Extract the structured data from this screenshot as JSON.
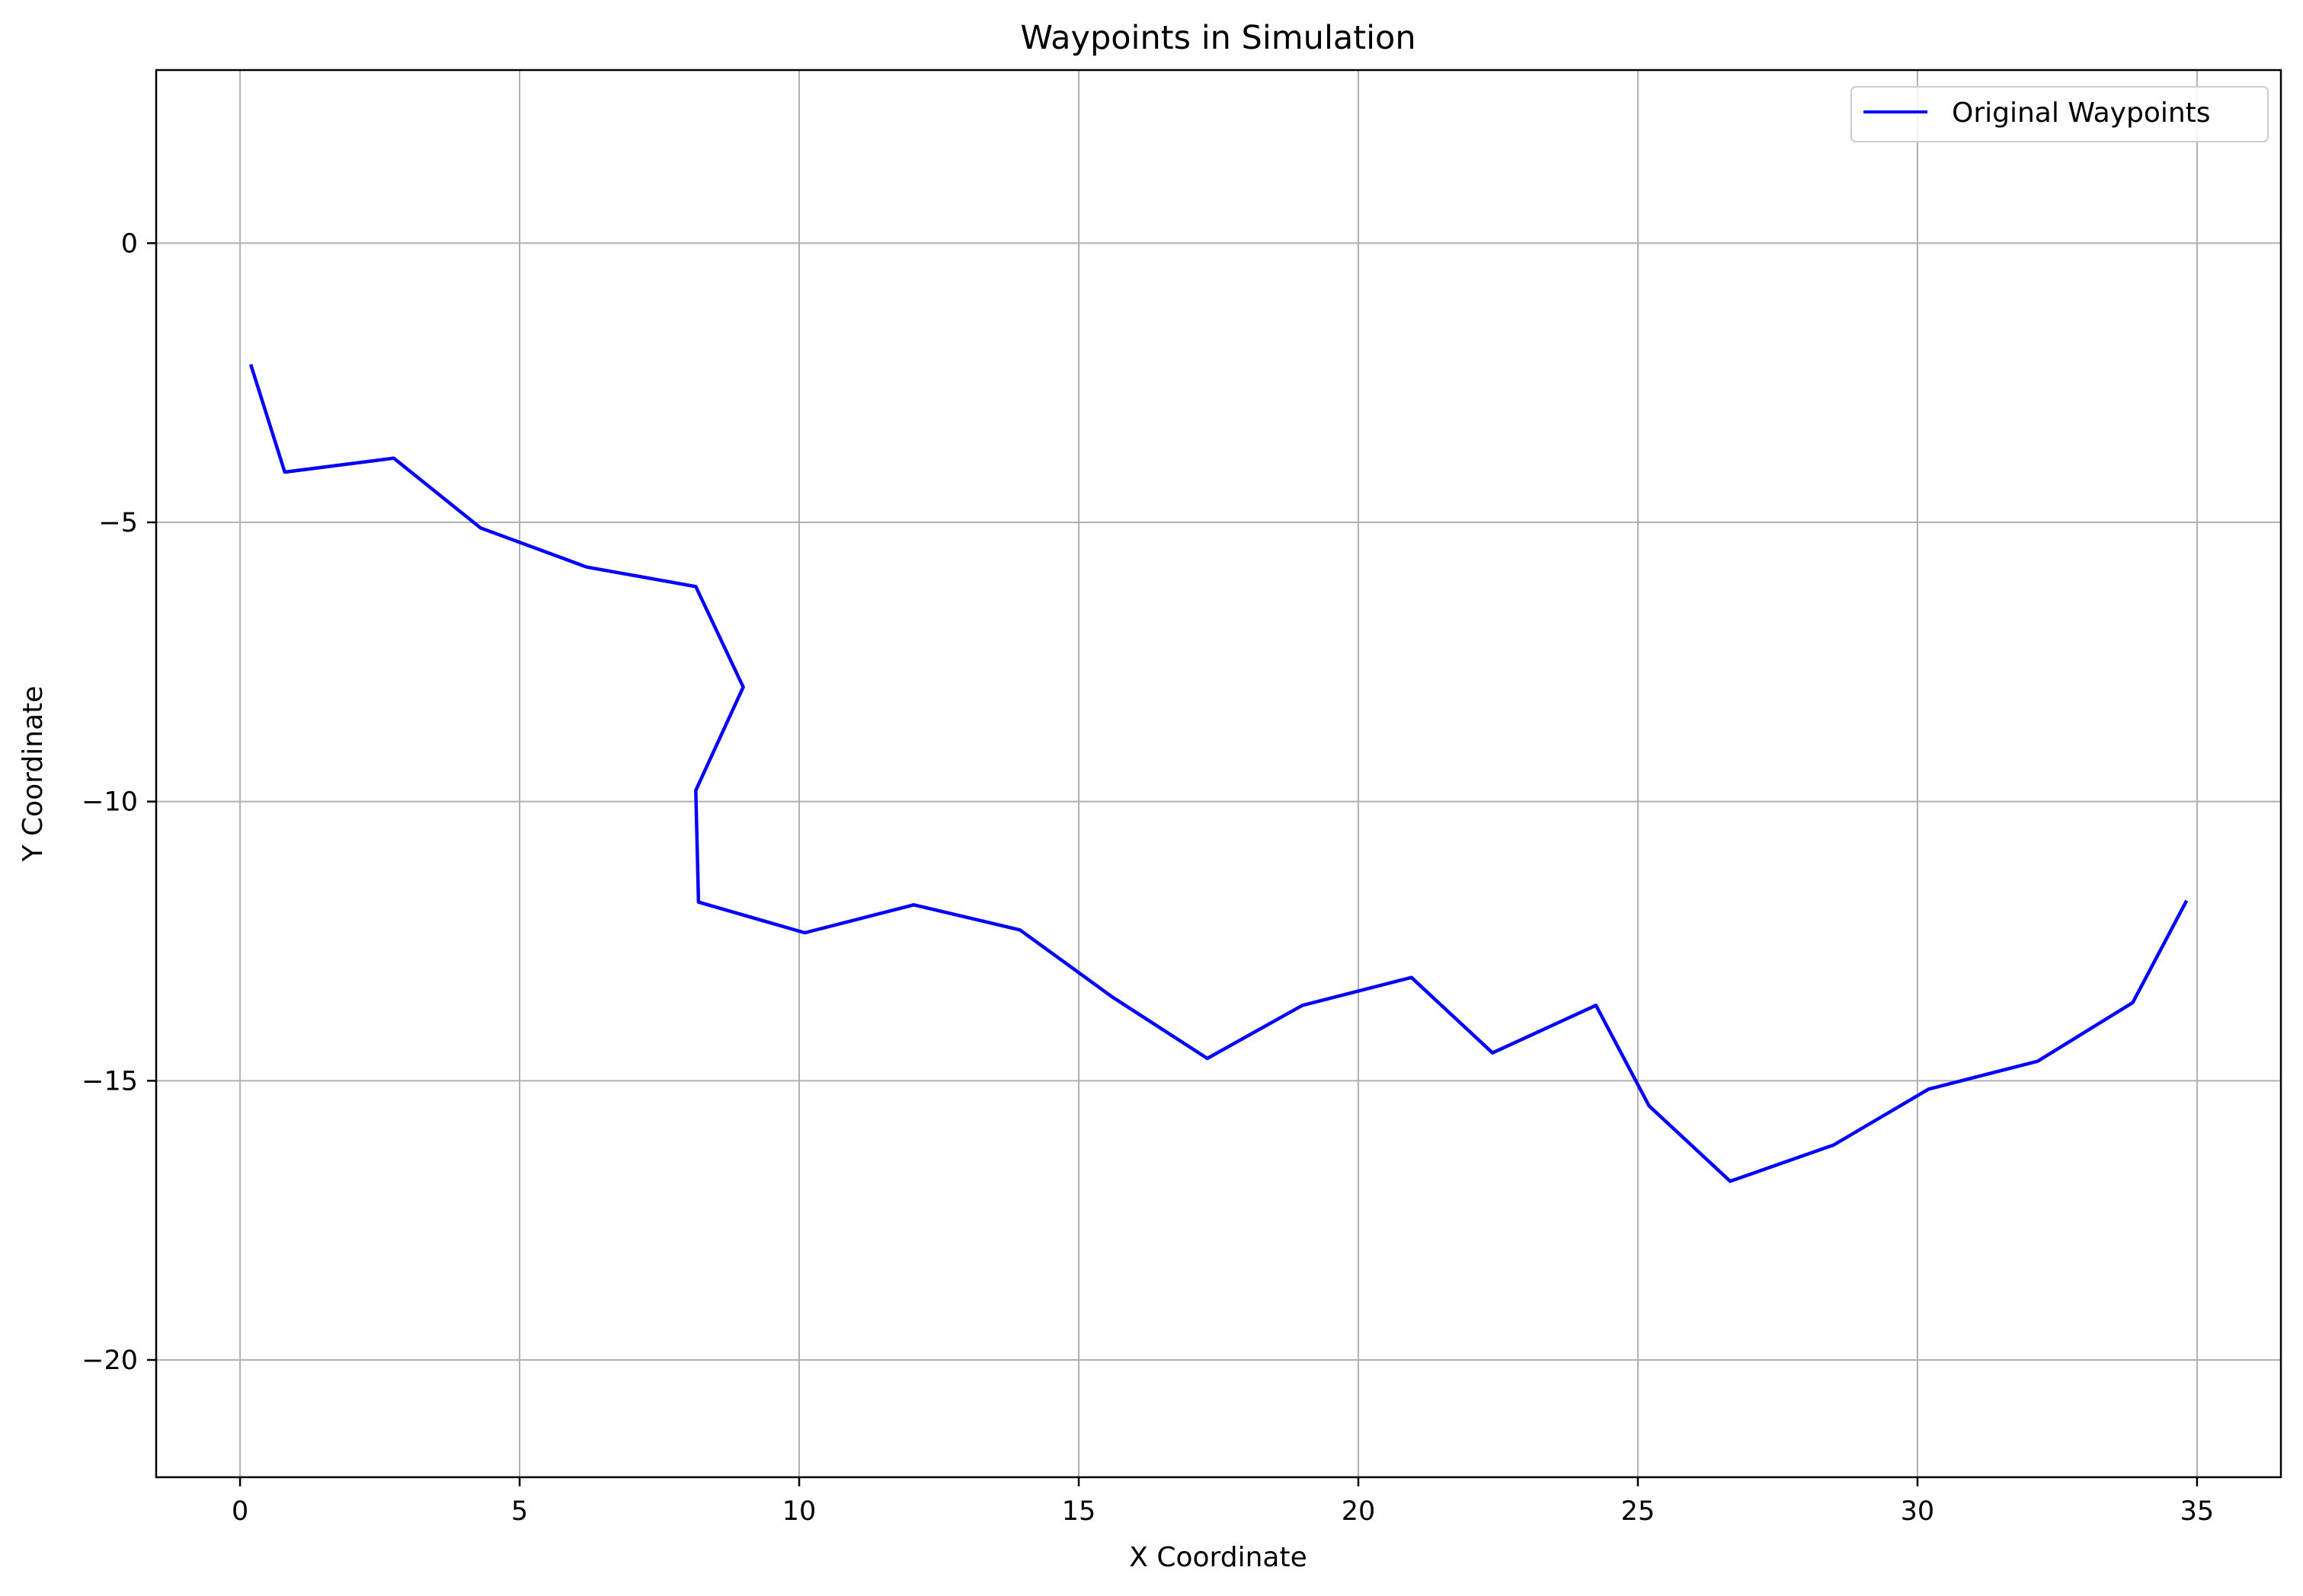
{
  "chart_data": {
    "type": "line",
    "title": "Waypoints in Simulation",
    "xlabel": "X Coordinate",
    "ylabel": "Y Coordinate",
    "xlim": [
      -1.5,
      36.5
    ],
    "ylim": [
      -22.1,
      3.1
    ],
    "xticks": [
      0,
      5,
      10,
      15,
      20,
      25,
      30,
      35
    ],
    "yticks": [
      0,
      -5,
      -10,
      -15,
      -20
    ],
    "xtick_labels": [
      "0",
      "5",
      "10",
      "15",
      "20",
      "25",
      "30",
      "35"
    ],
    "ytick_labels": [
      "0",
      "−5",
      "−10",
      "−15",
      "−20"
    ],
    "grid": true,
    "legend": {
      "placement": "top-right"
    },
    "series": [
      {
        "name": "Original Waypoints",
        "color": "#0000ff",
        "x": [
          0.2,
          0.8,
          2.75,
          4.3,
          6.2,
          8.15,
          9.0,
          8.15,
          8.2,
          10.1,
          12.05,
          13.95,
          15.6,
          17.3,
          19.0,
          20.95,
          22.4,
          24.25,
          25.2,
          26.65,
          28.5,
          30.2,
          32.15,
          33.85,
          34.8
        ],
        "y": [
          -2.2,
          -4.1,
          -3.85,
          -5.1,
          -5.8,
          -6.15,
          -7.95,
          -9.8,
          -11.8,
          -12.35,
          -11.85,
          -12.3,
          -13.5,
          -14.6,
          -13.65,
          -13.15,
          -14.5,
          -13.65,
          -15.45,
          -16.8,
          -16.15,
          -15.15,
          -14.65,
          -13.6,
          -11.8
        ]
      }
    ]
  }
}
